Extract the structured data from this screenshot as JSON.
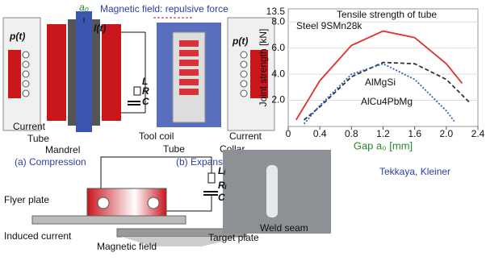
{
  "top_labels": {
    "gap": "a₀",
    "field": "Magnetic field: repulsive force"
  },
  "compression": {
    "pressure": "p(t)",
    "current_symbol": "I(t)",
    "inductance": "L",
    "resistance": "R",
    "capacitance": "C",
    "current": "Current",
    "tube": "Tube",
    "mandrel": "Mandrel",
    "caption": "(a) Compression"
  },
  "expansion": {
    "tool_coil": "Tool coil",
    "tube": "Tube",
    "collar": "Collar",
    "current": "Current",
    "pressure": "p(t)",
    "caption": "(b) Expansion"
  },
  "chart_data": {
    "type": "line",
    "title": "Tensile strength of tube",
    "xlabel": "Gap a₀ [mm]",
    "ylabel": "Joint strength [kN]",
    "ybreak_label": "13.5",
    "xlim": [
      0,
      2.4
    ],
    "ylim": [
      0,
      9
    ],
    "xticks": [
      0,
      0.4,
      0.8,
      1.2,
      1.6,
      {
        "value": 2,
        "label": "2.0"
      },
      2.4
    ],
    "yticks": [
      {
        "value": 2,
        "label": "2.0"
      },
      {
        "value": 4,
        "label": "4.0"
      },
      {
        "value": 6,
        "label": "6.0"
      },
      {
        "value": 8,
        "label": "8.0"
      }
    ],
    "series": [
      {
        "name": "Steel 9SMn28k",
        "color": "#e03030",
        "dash": "none",
        "x": [
          0.1,
          0.4,
          0.8,
          1.2,
          1.6,
          2.0,
          2.2
        ],
        "values": [
          0.5,
          3.5,
          6.2,
          7.3,
          6.8,
          4.8,
          3.3
        ]
      },
      {
        "name": "AlMgSi",
        "color": "#333333",
        "dash": "5 3",
        "x": [
          0.2,
          0.4,
          0.8,
          1.2,
          1.6,
          2.0,
          2.3
        ],
        "values": [
          0.5,
          1.5,
          3.8,
          4.9,
          4.8,
          3.6,
          1.8
        ]
      },
      {
        "name": "AlCu4PbMg",
        "color": "#3060c0",
        "dash": "2 2",
        "x": [
          0.2,
          0.4,
          0.8,
          1.2,
          1.6,
          2.0,
          2.1
        ],
        "values": [
          0.2,
          1.6,
          4.0,
          4.8,
          3.6,
          1.2,
          0.4
        ]
      }
    ]
  },
  "welding": {
    "inductance": "Lᵢ",
    "resistance": "Rᵢ",
    "capacitance": "C",
    "flyer": "Flyer plate",
    "induced": "Induced current",
    "field": "Magnetic field",
    "target": "Target plate",
    "seam": "Weld seam"
  },
  "credit": "Tekkaya, Kleiner"
}
